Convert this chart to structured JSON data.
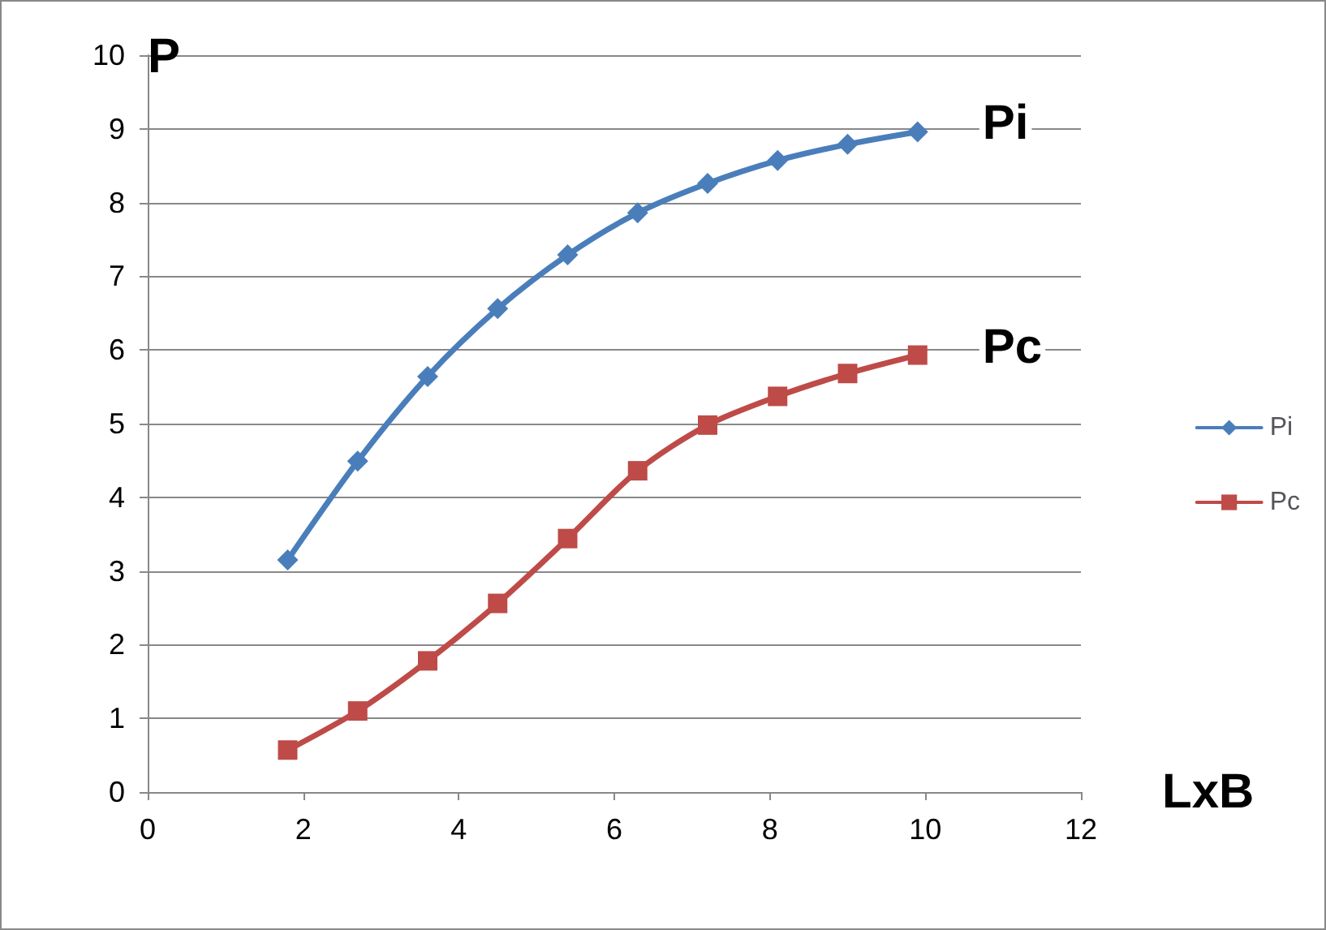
{
  "chart_data": {
    "type": "line",
    "xlabel": "LxB",
    "ylabel": "P",
    "x": [
      1.8,
      2.7,
      3.6,
      4.5,
      5.4,
      6.3,
      7.2,
      8.1,
      9.0,
      9.9
    ],
    "series": [
      {
        "name": "Pi",
        "color": "#4a7ebb",
        "marker": "diamond",
        "values": [
          3.15,
          4.49,
          5.64,
          6.56,
          7.29,
          7.86,
          8.26,
          8.57,
          8.79,
          8.96
        ]
      },
      {
        "name": "Pc",
        "color": "#be4b48",
        "marker": "square",
        "values": [
          0.57,
          1.1,
          1.78,
          2.56,
          3.44,
          4.36,
          4.98,
          5.37,
          5.68,
          5.93
        ]
      }
    ],
    "xlim": [
      0,
      12
    ],
    "xticks": [
      0,
      2,
      4,
      6,
      8,
      10,
      12
    ],
    "ylim": [
      0,
      10
    ],
    "yticks": [
      0,
      1,
      2,
      3,
      4,
      5,
      6,
      7,
      8,
      9,
      10
    ],
    "annotations": [
      "Pi",
      "Pc"
    ],
    "grid": "y",
    "legend": "right",
    "line_style": "solid"
  }
}
